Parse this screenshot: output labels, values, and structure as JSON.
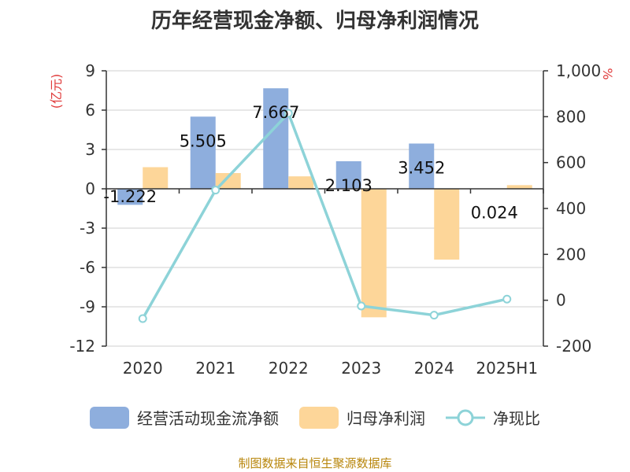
{
  "title": "历年经营现金净额、归母净利润情况",
  "footer": "制图数据来自恒生聚源数据库",
  "colors": {
    "cash": "#8eaedd",
    "profit": "#fdd699",
    "ratio": "#8dd3d8",
    "unit": "#e03a3a"
  },
  "chart_data": {
    "type": "bar",
    "categories": [
      "2020",
      "2021",
      "2022",
      "2023",
      "2024",
      "2025H1"
    ],
    "series": [
      {
        "name": "经营活动现金流净额",
        "type": "bar",
        "axis": "left",
        "values": [
          -1.222,
          5.505,
          7.667,
          2.103,
          3.452,
          0.024
        ]
      },
      {
        "name": "归母净利润",
        "type": "bar",
        "axis": "left",
        "values": [
          1.65,
          1.2,
          0.95,
          -9.8,
          -5.4,
          0.28
        ]
      },
      {
        "name": "净现比",
        "type": "line",
        "axis": "right",
        "values": [
          -80,
          480,
          815,
          -25,
          -65,
          5
        ]
      }
    ],
    "data_labels": [
      "-1.222",
      "5.505",
      "7.667",
      "2.103",
      "3.452",
      "0.024"
    ],
    "y_left": {
      "label": "(亿元)",
      "min": -12,
      "max": 9,
      "ticks": [
        "9",
        "6",
        "3",
        "0",
        "-3",
        "-6",
        "-9",
        "-12"
      ]
    },
    "y_right": {
      "label": "%",
      "min": -200,
      "max": 1000,
      "ticks": [
        "1,000",
        "800",
        "600",
        "400",
        "200",
        "0",
        "-200"
      ]
    },
    "grid": true,
    "legend_position": "bottom"
  }
}
